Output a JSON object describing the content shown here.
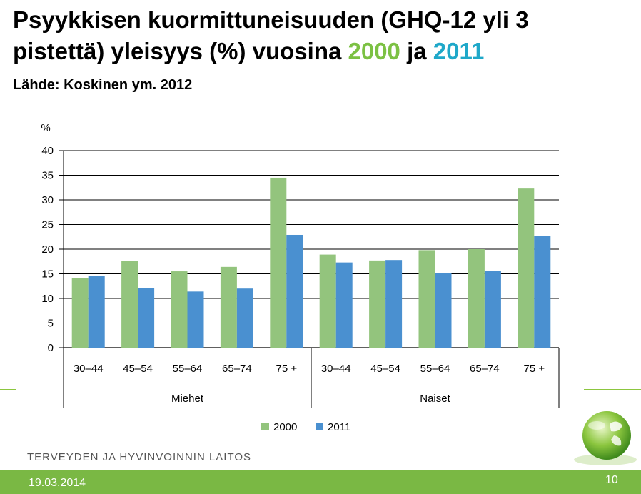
{
  "slide": {
    "title_part1": "Psyykkisen kuormittuneisuuden (GHQ-12 yli 3 pistettä) yleisyys (%) vuosina ",
    "title_year1": "2000",
    "title_mid": " ja ",
    "title_year2": "2011",
    "source": "Lähde: Koskinen ym. 2012",
    "organization": "TERVEYDEN JA HYVINVOINNIN LAITOS",
    "date": "19.03.2014",
    "page_number": "10"
  },
  "colors": {
    "year_2000": "#7cc143",
    "year_2011": "#1fa8c9",
    "bar_2000": "#93c47d",
    "bar_2011": "#4a90d0",
    "footer_green": "#7ab844"
  },
  "chart_data": {
    "type": "bar",
    "ylabel": "%",
    "ylim": [
      0,
      40
    ],
    "yticks": [
      0,
      5,
      10,
      15,
      20,
      25,
      30,
      35,
      40
    ],
    "grid": true,
    "legend_position": "bottom",
    "groups": [
      {
        "label": "Miehet",
        "categories": [
          "30–44",
          "45–54",
          "55–64",
          "65–74",
          "75 +"
        ]
      },
      {
        "label": "Naiset",
        "categories": [
          "30–44",
          "45–54",
          "55–64",
          "65–74",
          "75 +"
        ]
      }
    ],
    "series": [
      {
        "name": "2000",
        "values": [
          14.2,
          17.6,
          15.5,
          16.4,
          34.5,
          18.9,
          17.7,
          19.8,
          20.0,
          32.3
        ]
      },
      {
        "name": "2011",
        "values": [
          14.6,
          12.1,
          11.4,
          12.0,
          22.9,
          17.3,
          17.8,
          15.1,
          15.6,
          22.7
        ]
      }
    ]
  }
}
